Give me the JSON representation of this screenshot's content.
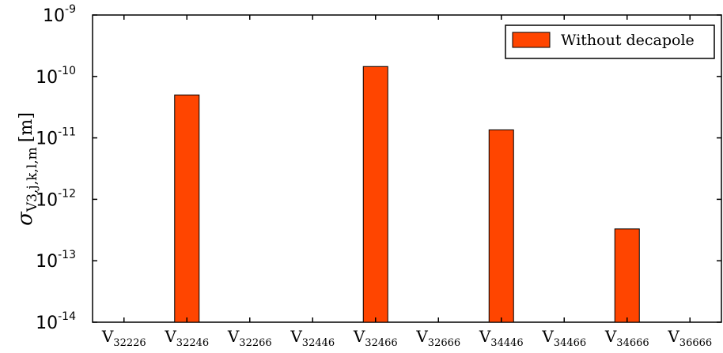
{
  "chart_data": {
    "type": "bar",
    "scale": "log",
    "ylim_exponents": [
      -14,
      -9
    ],
    "yticks": [
      {
        "base": "10",
        "exp": "-9",
        "value": 1e-09
      },
      {
        "base": "10",
        "exp": "-10",
        "value": 1e-10
      },
      {
        "base": "10",
        "exp": "-11",
        "value": 1e-11
      },
      {
        "base": "10",
        "exp": "-12",
        "value": 1e-12
      },
      {
        "base": "10",
        "exp": "-13",
        "value": 1e-13
      },
      {
        "base": "10",
        "exp": "-14",
        "value": 1e-14
      }
    ],
    "categories": [
      {
        "main": "V",
        "sub": "32226"
      },
      {
        "main": "V",
        "sub": "32246"
      },
      {
        "main": "V",
        "sub": "32266"
      },
      {
        "main": "V",
        "sub": "32446"
      },
      {
        "main": "V",
        "sub": "32466"
      },
      {
        "main": "V",
        "sub": "32666"
      },
      {
        "main": "V",
        "sub": "34446"
      },
      {
        "main": "V",
        "sub": "34466"
      },
      {
        "main": "V",
        "sub": "34666"
      },
      {
        "main": "V",
        "sub": "36666"
      }
    ],
    "series": [
      {
        "name": "Without decapole",
        "color": "#ff4500",
        "values": [
          null,
          5e-11,
          null,
          null,
          1.45e-10,
          null,
          1.35e-11,
          null,
          3.3e-13,
          null
        ]
      }
    ],
    "ylabel": {
      "symbol": "σ",
      "subscript": "V3,j,k,l,m",
      "unit": "[m]"
    },
    "legend": "top-right",
    "grid": false
  }
}
